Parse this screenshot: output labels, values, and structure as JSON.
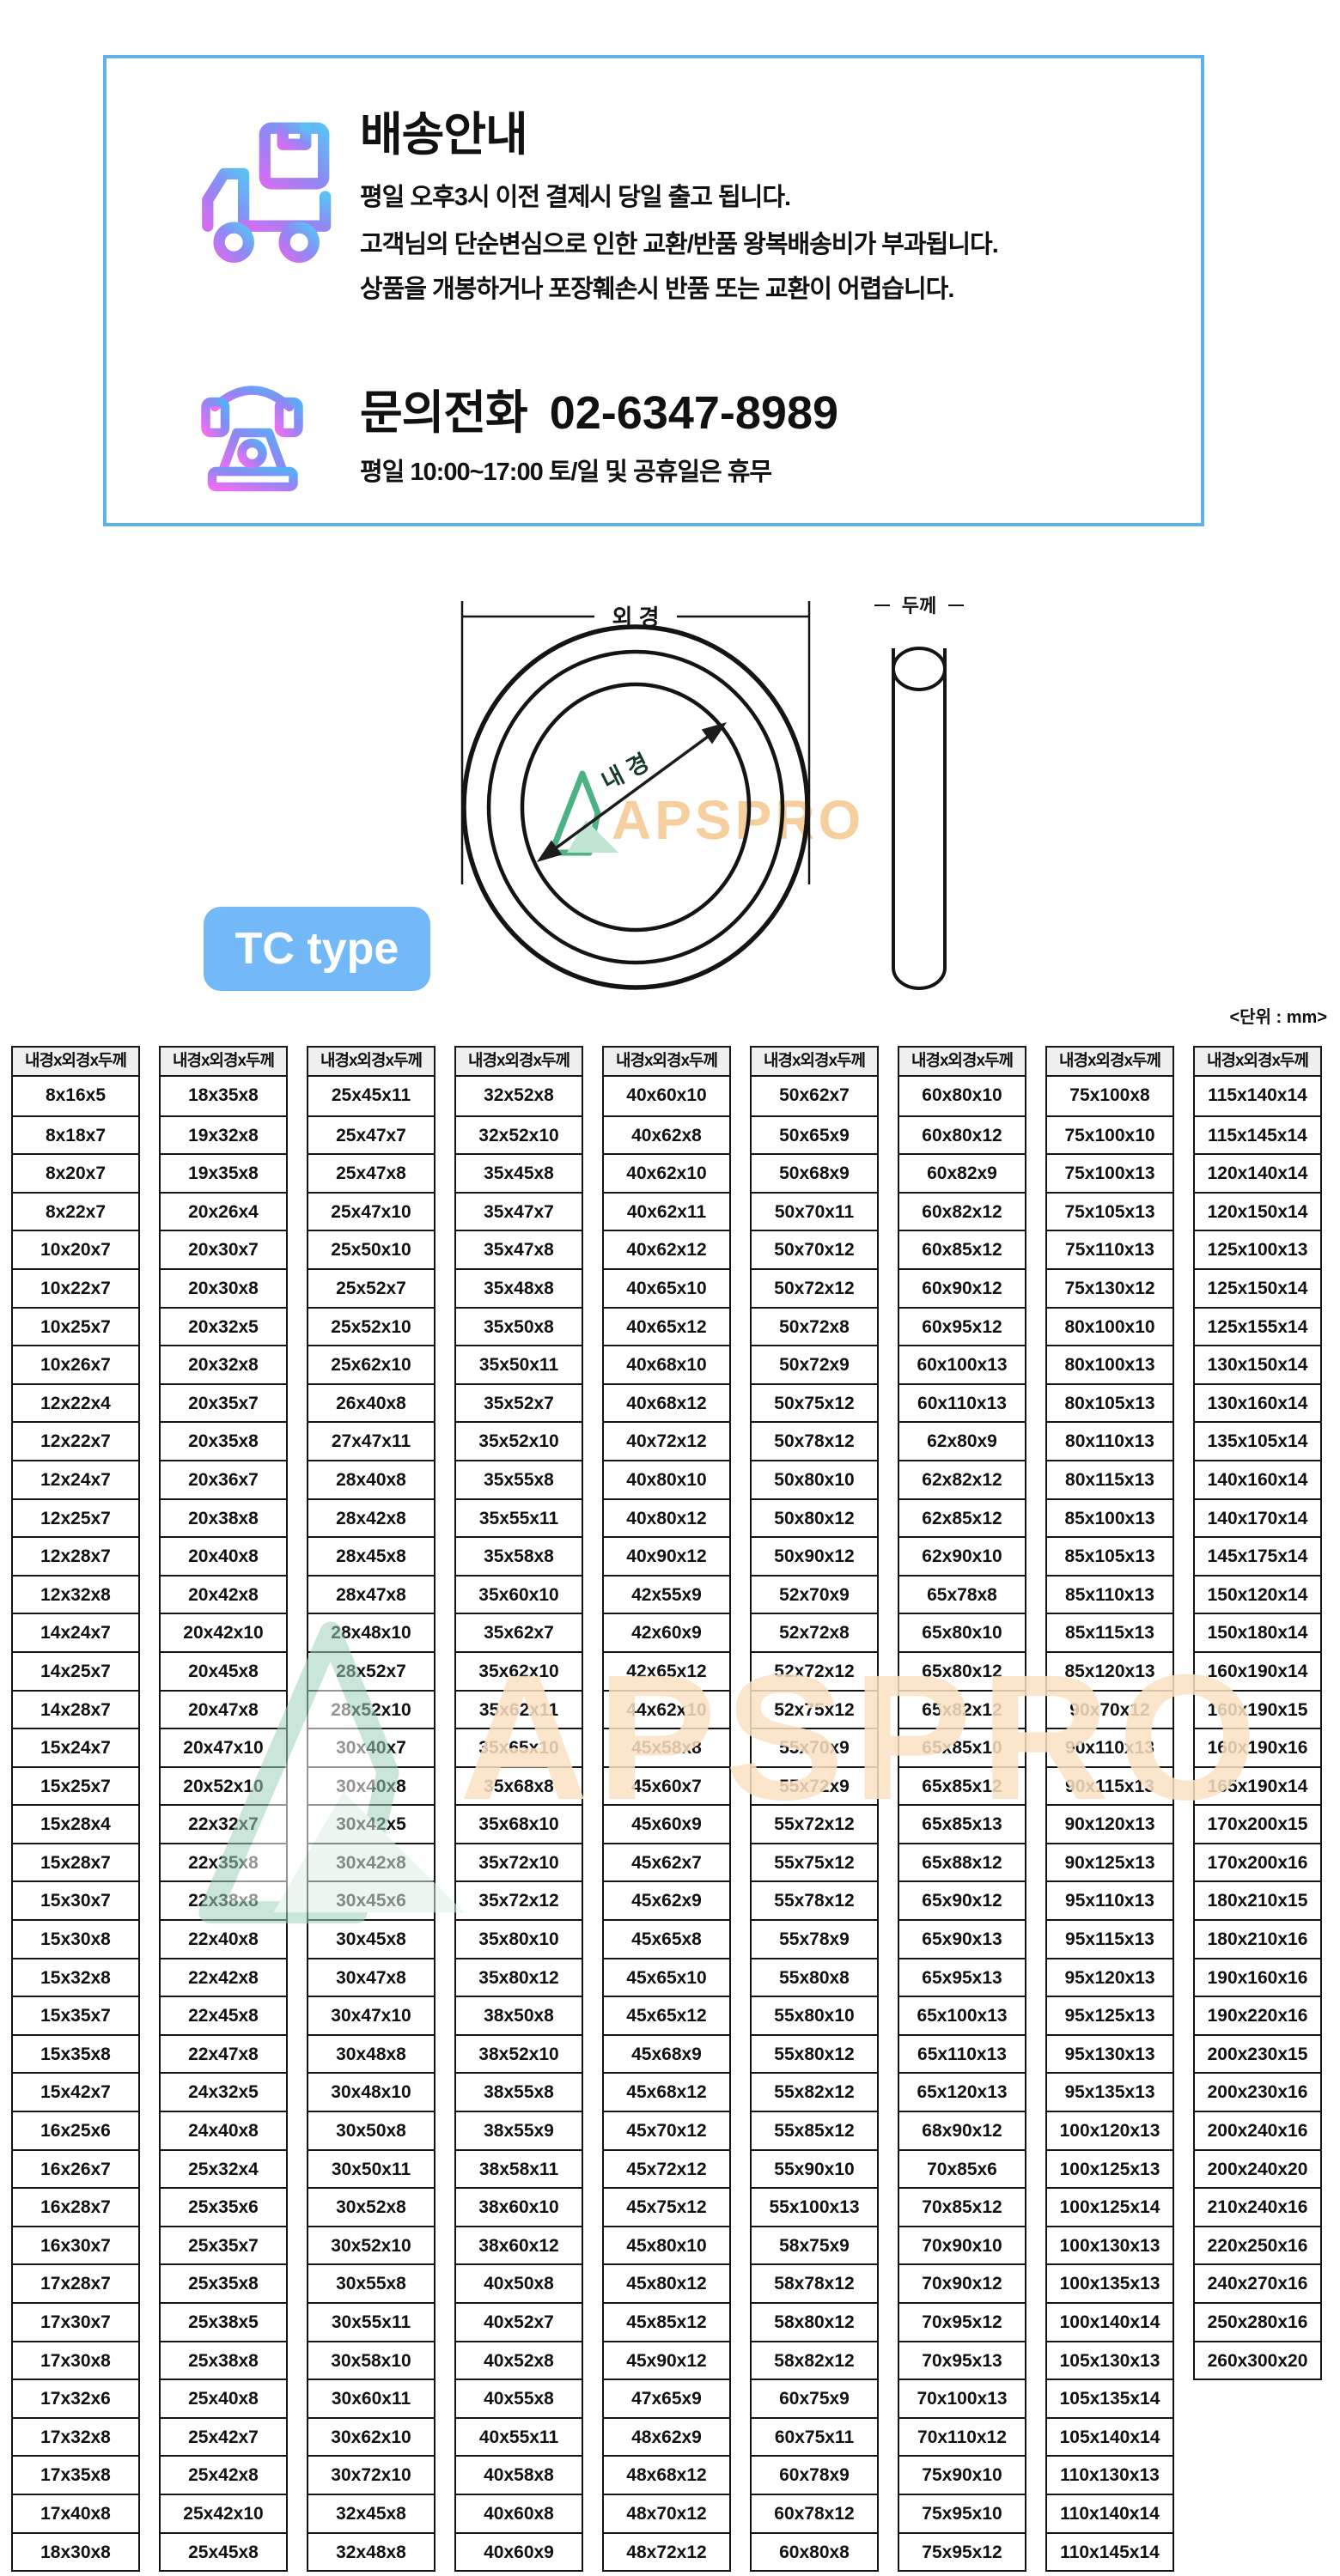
{
  "banner": {
    "title": "배송안내",
    "lines": [
      "평일 오후3시 이전 결제시 당일 출고 됩니다.",
      "고객님의 단순변심으로 인한 교환/반품 왕복배송비가 부과됩니다.",
      "상품을 개봉하거나 포장훼손시 반품 또는 교환이 어렵습니다."
    ],
    "phone_label": "문의전화",
    "phone_number": "02-6347-8989",
    "phone_hours": "평일 10:00~17:00 토/일 및 공휴일은 휴무"
  },
  "diagram": {
    "outer_label": "외 경",
    "inner_label": "내 경",
    "thickness_label": "두께",
    "badge": "TC type",
    "watermark": "APSPRO"
  },
  "table": {
    "unit_note": "<단위 : mm>",
    "header": "내경x외경x두께",
    "columns": [
      [
        "8x16x5",
        "8x18x7",
        "8x20x7",
        "8x22x7",
        "10x20x7",
        "10x22x7",
        "10x25x7",
        "10x26x7",
        "12x22x4",
        "12x22x7",
        "12x24x7",
        "12x25x7",
        "12x28x7",
        "12x32x8",
        "14x24x7",
        "14x25x7",
        "14x28x7",
        "15x24x7",
        "15x25x7",
        "15x28x4",
        "15x28x7",
        "15x30x7",
        "15x30x8",
        "15x32x8",
        "15x35x7",
        "15x35x8",
        "15x42x7",
        "16x25x6",
        "16x26x7",
        "16x28x7",
        "16x30x7",
        "17x28x7",
        "17x30x7",
        "17x30x8",
        "17x32x6",
        "17x32x8",
        "17x35x8",
        "17x40x8",
        "18x30x8"
      ],
      [
        "18x35x8",
        "19x32x8",
        "19x35x8",
        "20x26x4",
        "20x30x7",
        "20x30x8",
        "20x32x5",
        "20x32x8",
        "20x35x7",
        "20x35x8",
        "20x36x7",
        "20x38x8",
        "20x40x8",
        "20x42x8",
        "20x42x10",
        "20x45x8",
        "20x47x8",
        "20x47x10",
        "20x52x10",
        "22x32x7",
        "22x35x8",
        "22x38x8",
        "22x40x8",
        "22x42x8",
        "22x45x8",
        "22x47x8",
        "24x32x5",
        "24x40x8",
        "25x32x4",
        "25x35x6",
        "25x35x7",
        "25x35x8",
        "25x38x5",
        "25x38x8",
        "25x40x8",
        "25x42x7",
        "25x42x8",
        "25x42x10",
        "25x45x8"
      ],
      [
        "25x45x11",
        "25x47x7",
        "25x47x8",
        "25x47x10",
        "25x50x10",
        "25x52x7",
        "25x52x10",
        "25x62x10",
        "26x40x8",
        "27x47x11",
        "28x40x8",
        "28x42x8",
        "28x45x8",
        "28x47x8",
        "28x48x10",
        "28x52x7",
        "28x52x10",
        "30x40x7",
        "30x40x8",
        "30x42x5",
        "30x42x8",
        "30x45x6",
        "30x45x8",
        "30x47x8",
        "30x47x10",
        "30x48x8",
        "30x48x10",
        "30x50x8",
        "30x50x11",
        "30x52x8",
        "30x52x10",
        "30x55x8",
        "30x55x11",
        "30x58x10",
        "30x60x11",
        "30x62x10",
        "30x72x10",
        "32x45x8",
        "32x48x8"
      ],
      [
        "32x52x8",
        "32x52x10",
        "35x45x8",
        "35x47x7",
        "35x47x8",
        "35x48x8",
        "35x50x8",
        "35x50x11",
        "35x52x7",
        "35x52x10",
        "35x55x8",
        "35x55x11",
        "35x58x8",
        "35x60x10",
        "35x62x7",
        "35x62x10",
        "35x62x11",
        "35x65x10",
        "35x68x8",
        "35x68x10",
        "35x72x10",
        "35x72x12",
        "35x80x10",
        "35x80x12",
        "38x50x8",
        "38x52x10",
        "38x55x8",
        "38x55x9",
        "38x58x11",
        "38x60x10",
        "38x60x12",
        "40x50x8",
        "40x52x7",
        "40x52x8",
        "40x55x8",
        "40x55x11",
        "40x58x8",
        "40x60x8",
        "40x60x9"
      ],
      [
        "40x60x10",
        "40x62x8",
        "40x62x10",
        "40x62x11",
        "40x62x12",
        "40x65x10",
        "40x65x12",
        "40x68x10",
        "40x68x12",
        "40x72x12",
        "40x80x10",
        "40x80x12",
        "40x90x12",
        "42x55x9",
        "42x60x9",
        "42x65x12",
        "44x62x10",
        "45x58x8",
        "45x60x7",
        "45x60x9",
        "45x62x7",
        "45x62x9",
        "45x65x8",
        "45x65x10",
        "45x65x12",
        "45x68x9",
        "45x68x12",
        "45x70x12",
        "45x72x12",
        "45x75x12",
        "45x80x10",
        "45x80x12",
        "45x85x12",
        "45x90x12",
        "47x65x9",
        "48x62x9",
        "48x68x12",
        "48x70x12",
        "48x72x12"
      ],
      [
        "50x62x7",
        "50x65x9",
        "50x68x9",
        "50x70x11",
        "50x70x12",
        "50x72x12",
        "50x72x8",
        "50x72x9",
        "50x75x12",
        "50x78x12",
        "50x80x10",
        "50x80x12",
        "50x90x12",
        "52x70x9",
        "52x72x8",
        "52x72x12",
        "52x75x12",
        "55x70x9",
        "55x72x9",
        "55x72x12",
        "55x75x12",
        "55x78x12",
        "55x78x9",
        "55x80x8",
        "55x80x10",
        "55x80x12",
        "55x82x12",
        "55x85x12",
        "55x90x10",
        "55x100x13",
        "58x75x9",
        "58x78x12",
        "58x80x12",
        "58x82x12",
        "60x75x9",
        "60x75x11",
        "60x78x9",
        "60x78x12",
        "60x80x8"
      ],
      [
        "60x80x10",
        "60x80x12",
        "60x82x9",
        "60x82x12",
        "60x85x12",
        "60x90x12",
        "60x95x12",
        "60x100x13",
        "60x110x13",
        "62x80x9",
        "62x82x12",
        "62x85x12",
        "62x90x10",
        "65x78x8",
        "65x80x10",
        "65x80x12",
        "65x82x12",
        "65x85x10",
        "65x85x12",
        "65x85x13",
        "65x88x12",
        "65x90x12",
        "65x90x13",
        "65x95x13",
        "65x100x13",
        "65x110x13",
        "65x120x13",
        "68x90x12",
        "70x85x6",
        "70x85x12",
        "70x90x10",
        "70x90x12",
        "70x95x12",
        "70x95x13",
        "70x100x13",
        "70x110x12",
        "75x90x10",
        "75x95x10",
        "75x95x12"
      ],
      [
        "75x100x8",
        "75x100x10",
        "75x100x13",
        "75x105x13",
        "75x110x13",
        "75x130x12",
        "80x100x10",
        "80x100x13",
        "80x105x13",
        "80x110x13",
        "80x115x13",
        "85x100x13",
        "85x105x13",
        "85x110x13",
        "85x115x13",
        "85x120x13",
        "90x70x12",
        "90x110x13",
        "90x115x13",
        "90x120x13",
        "90x125x13",
        "95x110x13",
        "95x115x13",
        "95x120x13",
        "95x125x13",
        "95x130x13",
        "95x135x13",
        "100x120x13",
        "100x125x13",
        "100x125x14",
        "100x130x13",
        "100x135x13",
        "100x140x14",
        "105x130x13",
        "105x135x14",
        "105x140x14",
        "110x130x13",
        "110x140x14",
        "110x145x14"
      ],
      [
        "115x140x14",
        "115x145x14",
        "120x140x14",
        "120x150x14",
        "125x100x13",
        "125x150x14",
        "125x155x14",
        "130x150x14",
        "130x160x14",
        "135x105x14",
        "140x160x14",
        "140x170x14",
        "145x175x14",
        "150x120x14",
        "150x180x14",
        "160x190x14",
        "160x190x15",
        "160x190x16",
        "165x190x14",
        "170x200x15",
        "170x200x16",
        "180x210x15",
        "180x210x16",
        "190x160x16",
        "190x220x16",
        "200x230x15",
        "200x230x16",
        "200x240x16",
        "200x240x20",
        "210x240x16",
        "220x250x16",
        "240x270x16",
        "250x280x16",
        "260x300x20"
      ]
    ]
  },
  "colors": {
    "banner_border": "#5fb0ef",
    "badge_bg": "#74b9f7",
    "header_bg": "#efefef",
    "watermark_green": "#4cb183",
    "watermark_peach": "#f8d5a6",
    "text": "#111111"
  }
}
